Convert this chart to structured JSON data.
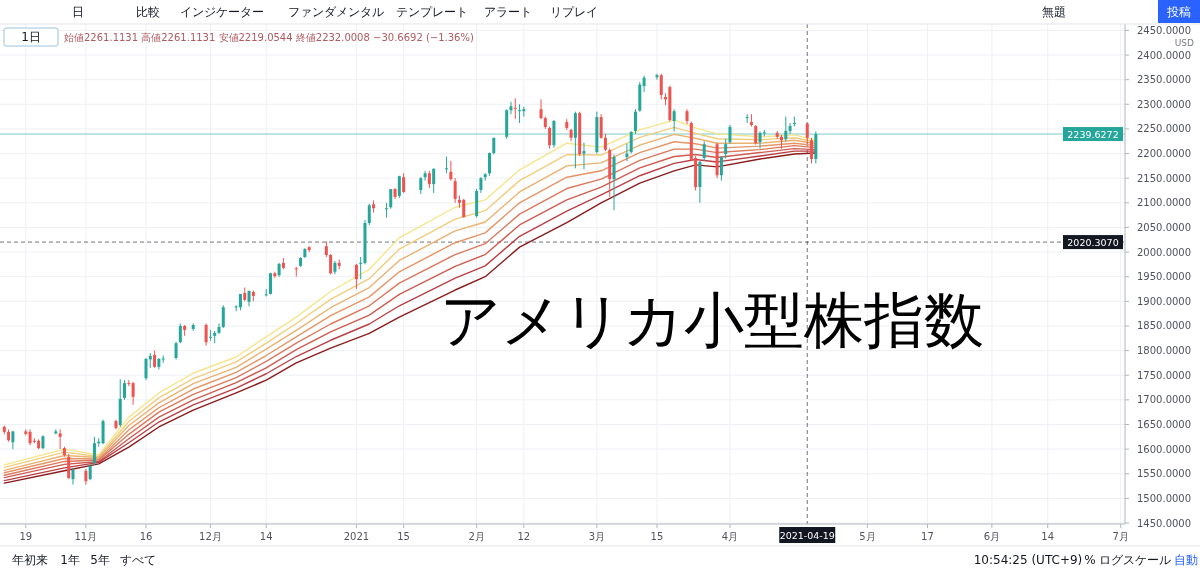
{
  "chart_data": {
    "type": "candlestick",
    "title": "アメリカ小型株指数",
    "subtitle": "始値2261.1131 高値2261.1131 安値2219.0544 終値2232.0008 −30.6692 (−1.36%)",
    "ylabel": "USD",
    "annotations": [
      "日",
      "比較",
      "インジケーター",
      "ファンダメンタル",
      "テンプレート",
      "アラート",
      "リプレイ",
      "無題",
      "投稿",
      "1日",
      "年初来",
      "1年",
      "5年",
      "すべて",
      "10:54:25 (UTC+9)",
      "%",
      "ログスケール",
      "自動"
    ],
    "x": [
      "2020-10-14",
      "2020-10-15",
      "2020-10-16",
      "2020-10-19",
      "2020-10-20",
      "2020-10-21",
      "2020-10-22",
      "2020-10-23",
      "2020-10-26",
      "2020-10-27",
      "2020-10-28",
      "2020-10-29",
      "2020-10-30",
      "2020-11-02",
      "2020-11-03",
      "2020-11-04",
      "2020-11-05",
      "2020-11-06",
      "2020-11-09",
      "2020-11-10",
      "2020-11-11",
      "2020-11-12",
      "2020-11-13",
      "2020-11-16",
      "2020-11-17",
      "2020-11-18",
      "2020-11-19",
      "2020-11-20",
      "2020-11-23",
      "2020-11-24",
      "2020-11-25",
      "2020-11-27",
      "2020-11-30",
      "2020-12-01",
      "2020-12-02",
      "2020-12-03",
      "2020-12-04",
      "2020-12-07",
      "2020-12-08",
      "2020-12-09",
      "2020-12-10",
      "2020-12-11",
      "2020-12-14",
      "2020-12-15",
      "2020-12-16",
      "2020-12-17",
      "2020-12-18",
      "2020-12-21",
      "2020-12-22",
      "2020-12-23",
      "2020-12-24",
      "2020-12-28",
      "2020-12-29",
      "2020-12-30",
      "2020-12-31",
      "2021-01-04",
      "2021-01-05",
      "2021-01-06",
      "2021-01-07",
      "2021-01-08",
      "2021-01-11",
      "2021-01-12",
      "2021-01-13",
      "2021-01-14",
      "2021-01-15",
      "2021-01-19",
      "2021-01-20",
      "2021-01-21",
      "2021-01-22",
      "2021-01-25",
      "2021-01-26",
      "2021-01-27",
      "2021-01-28",
      "2021-01-29",
      "2021-02-01",
      "2021-02-02",
      "2021-02-03",
      "2021-02-04",
      "2021-02-05",
      "2021-02-08",
      "2021-02-09",
      "2021-02-10",
      "2021-02-11",
      "2021-02-12",
      "2021-02-16",
      "2021-02-17",
      "2021-02-18",
      "2021-02-19",
      "2021-02-22",
      "2021-02-23",
      "2021-02-24",
      "2021-02-25",
      "2021-02-26",
      "2021-03-01",
      "2021-03-02",
      "2021-03-03",
      "2021-03-04",
      "2021-03-05",
      "2021-03-08",
      "2021-03-09",
      "2021-03-10",
      "2021-03-11",
      "2021-03-12",
      "2021-03-15",
      "2021-03-16",
      "2021-03-17",
      "2021-03-18",
      "2021-03-19",
      "2021-03-22",
      "2021-03-23",
      "2021-03-24",
      "2021-03-25",
      "2021-03-26",
      "2021-03-29",
      "2021-03-30",
      "2021-03-31",
      "2021-04-01",
      "2021-04-05",
      "2021-04-06",
      "2021-04-07",
      "2021-04-08",
      "2021-04-09",
      "2021-04-12",
      "2021-04-13",
      "2021-04-14",
      "2021-04-15",
      "2021-04-16",
      "2021-04-19",
      "2021-04-20",
      "2021-04-21"
    ],
    "ohlc": [
      [
        1645,
        1648,
        1630,
        1635
      ],
      [
        1635,
        1640,
        1615,
        1618
      ],
      [
        1614,
        1637,
        1600,
        1636
      ],
      [
        1636,
        1640,
        1628,
        1631
      ],
      [
        1635,
        1640,
        1608,
        1612
      ],
      [
        1617,
        1622,
        1612,
        1615
      ],
      [
        1617,
        1620,
        1600,
        1602
      ],
      [
        1602,
        1628,
        1600,
        1626
      ],
      [
        1632,
        1640,
        1630,
        1636
      ],
      [
        1632,
        1640,
        1600,
        1625
      ],
      [
        1602,
        1605,
        1585,
        1588
      ],
      [
        1584,
        1590,
        1540,
        1541
      ],
      [
        1539,
        1562,
        1528,
        1558
      ],
      [
        1556,
        1560,
        1528,
        1535
      ],
      [
        1539,
        1570,
        1537,
        1566
      ],
      [
        1572,
        1625,
        1568,
        1612
      ],
      [
        1612,
        1622,
        1605,
        1615
      ],
      [
        1612,
        1660,
        1610,
        1657
      ],
      [
        1657,
        1660,
        1640,
        1643
      ],
      [
        1649,
        1742,
        1645,
        1702
      ],
      [
        1704,
        1740,
        1700,
        1734
      ],
      [
        1734,
        1740,
        1728,
        1733
      ],
      [
        1734,
        1736,
        1690,
        1706
      ],
      [
        1744,
        1785,
        1740,
        1783
      ],
      [
        1782,
        1795,
        1765,
        1789
      ],
      [
        1791,
        1800,
        1765,
        1767
      ],
      [
        1767,
        1785,
        1762,
        1783
      ],
      [
        1782,
        1790,
        1775,
        1784
      ],
      [
        1785,
        1818,
        1782,
        1815
      ],
      [
        1817,
        1855,
        1815,
        1850
      ],
      [
        1850,
        1852,
        1830,
        1842
      ],
      [
        1844,
        1855,
        1840,
        1852
      ],
      [
        1852,
        1855,
        1810,
        1817
      ],
      [
        1826,
        1842,
        1820,
        1828
      ],
      [
        1830,
        1840,
        1815,
        1836
      ],
      [
        1836,
        1855,
        1834,
        1848
      ],
      [
        1848,
        1892,
        1846,
        1888
      ],
      [
        1888,
        1892,
        1880,
        1890
      ],
      [
        1888,
        1915,
        1882,
        1915
      ],
      [
        1917,
        1928,
        1900,
        1903
      ],
      [
        1899,
        1922,
        1890,
        1921
      ],
      [
        1919,
        1922,
        1900,
        1911
      ],
      [
        1913,
        1925,
        1910,
        1914
      ],
      [
        1915,
        1958,
        1914,
        1957
      ],
      [
        1957,
        1960,
        1948,
        1951
      ],
      [
        1953,
        1978,
        1950,
        1976
      ],
      [
        1978,
        1988,
        1965,
        1968
      ],
      [
        1967,
        1970,
        1950,
        1966
      ],
      [
        1972,
        1990,
        1970,
        1988
      ],
      [
        1990,
        2008,
        1988,
        2006
      ],
      [
        2010,
        2012,
        2000,
        2004
      ],
      [
        2012,
        2022,
        1990,
        1994
      ],
      [
        1994,
        1996,
        1955,
        1957
      ],
      [
        1960,
        1982,
        1955,
        1978
      ],
      [
        1978,
        1985,
        1965,
        1972
      ],
      [
        1974,
        1976,
        1925,
        1945
      ],
      [
        1976,
        1990,
        1945,
        1978
      ],
      [
        1978,
        2065,
        1975,
        2059
      ],
      [
        2059,
        2098,
        2055,
        2095
      ],
      [
        2097,
        2105,
        2080,
        2089
      ],
      [
        2089,
        2100,
        2070,
        2089
      ],
      [
        2091,
        2128,
        2088,
        2128
      ],
      [
        2128,
        2130,
        2108,
        2112
      ],
      [
        2114,
        2155,
        2110,
        2154
      ],
      [
        2152,
        2160,
        2120,
        2122
      ],
      [
        2126,
        2152,
        2118,
        2150
      ],
      [
        2152,
        2165,
        2145,
        2160
      ],
      [
        2160,
        2165,
        2130,
        2138
      ],
      [
        2138,
        2170,
        2120,
        2169
      ],
      [
        2168,
        2194,
        2160,
        2170
      ],
      [
        2163,
        2185,
        2145,
        2148
      ],
      [
        2144,
        2150,
        2100,
        2108
      ],
      [
        2106,
        2115,
        2090,
        2100
      ],
      [
        2106,
        2108,
        2070,
        2071
      ],
      [
        2073,
        2128,
        2070,
        2124
      ],
      [
        2126,
        2152,
        2120,
        2150
      ],
      [
        2152,
        2160,
        2145,
        2158
      ],
      [
        2160,
        2202,
        2155,
        2201
      ],
      [
        2201,
        2232,
        2198,
        2232
      ],
      [
        2234,
        2290,
        2230,
        2288
      ],
      [
        2288,
        2305,
        2280,
        2296
      ],
      [
        2293,
        2312,
        2270,
        2292
      ],
      [
        2286,
        2300,
        2262,
        2288
      ],
      [
        2286,
        2295,
        2275,
        2290
      ],
      [
        2290,
        2310,
        2270,
        2272
      ],
      [
        2272,
        2275,
        2250,
        2254
      ],
      [
        2252,
        2255,
        2210,
        2217
      ],
      [
        2217,
        2268,
        2212,
        2266
      ],
      [
        2264,
        2270,
        2248,
        2252
      ],
      [
        2248,
        2250,
        2225,
        2232
      ],
      [
        2232,
        2285,
        2170,
        2282
      ],
      [
        2282,
        2285,
        2195,
        2199
      ],
      [
        2200,
        2222,
        2168,
        2205
      ],
      [
        2203,
        2285,
        2200,
        2274
      ],
      [
        2274,
        2280,
        2230,
        2232
      ],
      [
        2232,
        2240,
        2205,
        2208
      ],
      [
        2207,
        2210,
        2112,
        2148
      ],
      [
        2148,
        2198,
        2085,
        2193
      ],
      [
        2193,
        2220,
        2185,
        2200
      ],
      [
        2203,
        2245,
        2200,
        2244
      ],
      [
        2246,
        2290,
        2240,
        2285
      ],
      [
        2287,
        2345,
        2285,
        2340
      ],
      [
        2337,
        2358,
        2325,
        2354
      ],
      [
        2355,
        2362,
        2350,
        2359
      ],
      [
        2359,
        2362,
        2310,
        2319
      ],
      [
        2315,
        2322,
        2298,
        2310
      ],
      [
        2335,
        2338,
        2265,
        2268
      ],
      [
        2266,
        2290,
        2245,
        2286
      ],
      [
        2286,
        2290,
        2260,
        2266
      ],
      [
        2262,
        2265,
        2185,
        2187
      ],
      [
        2191,
        2195,
        2125,
        2132
      ],
      [
        2132,
        2185,
        2100,
        2183
      ],
      [
        2191,
        2225,
        2185,
        2219
      ],
      [
        2219,
        2222,
        2150,
        2156
      ],
      [
        2156,
        2195,
        2145,
        2193
      ],
      [
        2199,
        2230,
        2190,
        2219
      ],
      [
        2223,
        2258,
        2220,
        2254
      ],
      [
        2272,
        2280,
        2262,
        2274
      ],
      [
        2264,
        2280,
        2255,
        2258
      ],
      [
        2256,
        2258,
        2218,
        2221
      ],
      [
        2223,
        2245,
        2210,
        2242
      ],
      [
        2242,
        2248,
        2235,
        2243
      ],
      [
        2242,
        2246,
        2230,
        2234
      ],
      [
        2234,
        2238,
        2210,
        2227
      ],
      [
        2229,
        2275,
        2225,
        2246
      ],
      [
        2246,
        2262,
        2240,
        2256
      ],
      [
        2260,
        2275,
        2255,
        2262
      ],
      [
        2261.1131,
        2261.1131,
        2219.0544,
        2232.0008
      ],
      [
        2227,
        2232,
        2180,
        2189
      ],
      [
        2189,
        2245,
        2180,
        2239.6272
      ]
    ],
    "series": [
      {
        "type": "line",
        "color": "#f6e58d",
        "x": [
          "2020-10-14",
          "2020-10-28",
          "2020-11-05",
          "2020-11-12",
          "2020-11-19",
          "2020-11-27",
          "2020-12-07",
          "2020-12-14",
          "2020-12-21",
          "2020-12-29",
          "2021-01-07",
          "2021-01-14",
          "2021-01-27",
          "2021-02-03",
          "2021-02-11",
          "2021-02-22",
          "2021-03-02",
          "2021-03-11",
          "2021-03-19",
          "2021-03-24",
          "2021-03-29",
          "2021-04-08",
          "2021-04-16",
          "2021-04-21"
        ],
        "values": [
          1568,
          1600,
          1588,
          1665,
          1714,
          1754,
          1787,
          1828,
          1868,
          1920,
          1965,
          2029,
          2091,
          2106,
          2167,
          2221,
          2213,
          2248,
          2268,
          2252,
          2240,
          2234,
          2238,
          2227
        ]
      },
      {
        "type": "line",
        "color": "#f2cd7e",
        "x": [
          "2020-10-14",
          "2020-10-28",
          "2020-11-05",
          "2020-11-12",
          "2020-11-19",
          "2020-11-27",
          "2020-12-07",
          "2020-12-14",
          "2020-12-21",
          "2020-12-29",
          "2021-01-07",
          "2021-01-14",
          "2021-01-27",
          "2021-02-03",
          "2021-02-11",
          "2021-02-22",
          "2021-03-02",
          "2021-03-11",
          "2021-03-19",
          "2021-03-24",
          "2021-03-29",
          "2021-04-08",
          "2021-04-16",
          "2021-04-21"
        ],
        "values": [
          1563,
          1594,
          1585,
          1656,
          1704,
          1743,
          1777,
          1815,
          1855,
          1904,
          1946,
          2006,
          2067,
          2084,
          2145,
          2198,
          2197,
          2233,
          2253,
          2241,
          2230,
          2228,
          2232,
          2223
        ]
      },
      {
        "type": "line",
        "color": "#ecb271",
        "x": [
          "2020-10-14",
          "2020-10-28",
          "2020-11-05",
          "2020-11-12",
          "2020-11-19",
          "2020-11-27",
          "2020-12-07",
          "2020-12-14",
          "2020-12-21",
          "2020-12-29",
          "2021-01-07",
          "2021-01-14",
          "2021-01-27",
          "2021-02-03",
          "2021-02-11",
          "2021-02-22",
          "2021-03-02",
          "2021-03-11",
          "2021-03-19",
          "2021-03-24",
          "2021-03-29",
          "2021-04-08",
          "2021-04-16",
          "2021-04-21"
        ],
        "values": [
          1557,
          1587,
          1583,
          1648,
          1694,
          1733,
          1766,
          1803,
          1841,
          1887,
          1928,
          1983,
          2043,
          2061,
          2122,
          2175,
          2181,
          2217,
          2239,
          2231,
          2221,
          2221,
          2227,
          2220
        ]
      },
      {
        "type": "line",
        "color": "#e69566",
        "x": [
          "2020-10-14",
          "2020-10-28",
          "2020-11-05",
          "2020-11-12",
          "2020-11-19",
          "2020-11-27",
          "2020-12-07",
          "2020-12-14",
          "2020-12-21",
          "2020-12-29",
          "2021-01-07",
          "2021-01-14",
          "2021-01-27",
          "2021-02-03",
          "2021-02-11",
          "2021-02-22",
          "2021-03-02",
          "2021-03-11",
          "2021-03-19",
          "2021-03-24",
          "2021-03-29",
          "2021-04-08",
          "2021-04-16",
          "2021-04-21"
        ],
        "values": [
          1552,
          1581,
          1580,
          1639,
          1684,
          1722,
          1756,
          1790,
          1828,
          1871,
          1909,
          1960,
          2019,
          2039,
          2100,
          2152,
          2165,
          2202,
          2224,
          2220,
          2211,
          2215,
          2221,
          2216
        ]
      },
      {
        "type": "line",
        "color": "#dd785c",
        "x": [
          "2020-10-14",
          "2020-10-28",
          "2020-11-05",
          "2020-11-12",
          "2020-11-19",
          "2020-11-27",
          "2020-12-07",
          "2020-12-14",
          "2020-12-21",
          "2020-12-29",
          "2021-01-07",
          "2021-01-14",
          "2021-01-27",
          "2021-02-03",
          "2021-02-11",
          "2021-02-22",
          "2021-03-02",
          "2021-03-11",
          "2021-03-19",
          "2021-03-24",
          "2021-03-29",
          "2021-04-08",
          "2021-04-16",
          "2021-04-21"
        ],
        "values": [
          1547,
          1575,
          1578,
          1630,
          1675,
          1711,
          1745,
          1778,
          1815,
          1854,
          1891,
          1937,
          1995,
          2017,
          2077,
          2129,
          2148,
          2186,
          2209,
          2209,
          2202,
          2208,
          2216,
          2212
        ]
      },
      {
        "type": "line",
        "color": "#cf5b51",
        "x": [
          "2020-10-14",
          "2020-10-28",
          "2020-11-05",
          "2020-11-12",
          "2020-11-19",
          "2020-11-27",
          "2020-12-07",
          "2020-12-14",
          "2020-12-21",
          "2020-12-29",
          "2021-01-07",
          "2021-01-14",
          "2021-01-27",
          "2021-02-03",
          "2021-02-11",
          "2021-02-22",
          "2021-03-02",
          "2021-03-11",
          "2021-03-19",
          "2021-03-24",
          "2021-03-29",
          "2021-04-08",
          "2021-04-16",
          "2021-04-21"
        ],
        "values": [
          1542,
          1569,
          1575,
          1621,
          1665,
          1700,
          1735,
          1765,
          1802,
          1838,
          1872,
          1914,
          1971,
          1995,
          2055,
          2106,
          2132,
          2171,
          2194,
          2198,
          2192,
          2202,
          2210,
          2208
        ]
      },
      {
        "type": "line",
        "color": "#bb3f44",
        "x": [
          "2020-10-14",
          "2020-10-28",
          "2020-11-05",
          "2020-11-12",
          "2020-11-19",
          "2020-11-27",
          "2020-12-07",
          "2020-12-14",
          "2020-12-21",
          "2020-12-29",
          "2021-01-07",
          "2021-01-14",
          "2021-01-27",
          "2021-02-03",
          "2021-02-11",
          "2021-02-22",
          "2021-03-02",
          "2021-03-11",
          "2021-03-19",
          "2021-03-24",
          "2021-03-29",
          "2021-04-08",
          "2021-04-16",
          "2021-04-21"
        ],
        "values": [
          1536,
          1562,
          1573,
          1613,
          1655,
          1690,
          1724,
          1753,
          1788,
          1821,
          1854,
          1891,
          1947,
          1972,
          2032,
          2083,
          2116,
          2155,
          2180,
          2188,
          2183,
          2195,
          2205,
          2205
        ]
      },
      {
        "type": "line",
        "color": "#8b1c1c",
        "x": [
          "2020-10-14",
          "2020-10-28",
          "2020-11-05",
          "2020-11-12",
          "2020-11-19",
          "2020-11-27",
          "2020-12-07",
          "2020-12-14",
          "2020-12-21",
          "2020-12-29",
          "2021-01-07",
          "2021-01-14",
          "2021-01-27",
          "2021-02-03",
          "2021-02-11",
          "2021-02-22",
          "2021-03-02",
          "2021-03-11",
          "2021-03-19",
          "2021-03-24",
          "2021-03-29",
          "2021-04-08",
          "2021-04-16",
          "2021-04-21"
        ],
        "values": [
          1531,
          1556,
          1570,
          1604,
          1645,
          1679,
          1714,
          1740,
          1775,
          1805,
          1835,
          1868,
          1923,
          1950,
          2010,
          2060,
          2100,
          2140,
          2165,
          2177,
          2173,
          2189,
          2199,
          2201
        ]
      }
    ],
    "xlim": [
      "2020-10-13",
      "2021-07-02"
    ],
    "xticks": [
      {
        "value": "2020-10-19",
        "label": "19"
      },
      {
        "value": "2020-11-02",
        "label": "11月"
      },
      {
        "value": "2020-11-16",
        "label": "16"
      },
      {
        "value": "2020-12-01",
        "label": "12月"
      },
      {
        "value": "2020-12-14",
        "label": "14"
      },
      {
        "value": "2021-01-04",
        "label": "2021"
      },
      {
        "value": "2021-01-15",
        "label": "15"
      },
      {
        "value": "2021-02-01",
        "label": "2月"
      },
      {
        "value": "2021-02-12",
        "label": "12"
      },
      {
        "value": "2021-03-01",
        "label": "3月"
      },
      {
        "value": "2021-03-15",
        "label": "15"
      },
      {
        "value": "2021-04-01",
        "label": "4月"
      },
      {
        "value": "2021-05-03",
        "label": "5月"
      },
      {
        "value": "2021-05-17",
        "label": "17"
      },
      {
        "value": "2021-06-01",
        "label": "6月"
      },
      {
        "value": "2021-06-14",
        "label": "14"
      },
      {
        "value": "2021-07-01",
        "label": "7月"
      }
    ],
    "ylim": [
      1448,
      2463
    ],
    "yticks": [
      {
        "value": 1450,
        "label": "1450.0000"
      },
      {
        "value": 1500,
        "label": "1500.0000"
      },
      {
        "value": 1550,
        "label": "1550.0000"
      },
      {
        "value": 1600,
        "label": "1600.0000"
      },
      {
        "value": 1650,
        "label": "1650.0000"
      },
      {
        "value": 1700,
        "label": "1700.0000"
      },
      {
        "value": 1750,
        "label": "1750.0000"
      },
      {
        "value": 1800,
        "label": "1800.0000"
      },
      {
        "value": 1850,
        "label": "1850.0000"
      },
      {
        "value": 1900,
        "label": "1900.0000"
      },
      {
        "value": 1950,
        "label": "1950.0000"
      },
      {
        "value": 2000,
        "label": "2000.0000"
      },
      {
        "value": 2050,
        "label": "2050.0000"
      },
      {
        "value": 2100,
        "label": "2100.0000"
      },
      {
        "value": 2150,
        "label": "2150.0000"
      },
      {
        "value": 2200,
        "label": "2200.0000"
      },
      {
        "value": 2250,
        "label": "2250.0000"
      },
      {
        "value": 2300,
        "label": "2300.0000"
      },
      {
        "value": 2350,
        "label": "2350.0000"
      },
      {
        "value": 2400,
        "label": "2400.0000"
      },
      {
        "value": 2450,
        "label": "2450.0000"
      }
    ],
    "ref_lines": [
      {
        "axis": "y",
        "value": 2239.6272,
        "label": "2239.6272",
        "color": "#26a69a",
        "line_style": "solid"
      },
      {
        "axis": "y",
        "value": 2020.307,
        "label": "2020.3070",
        "color": "#131722",
        "line_style": "dashed"
      },
      {
        "axis": "x",
        "value": "2021-04-19",
        "label": "2021-04-19",
        "color": "#131722",
        "line_style": "dashed"
      }
    ],
    "grid": true
  }
}
